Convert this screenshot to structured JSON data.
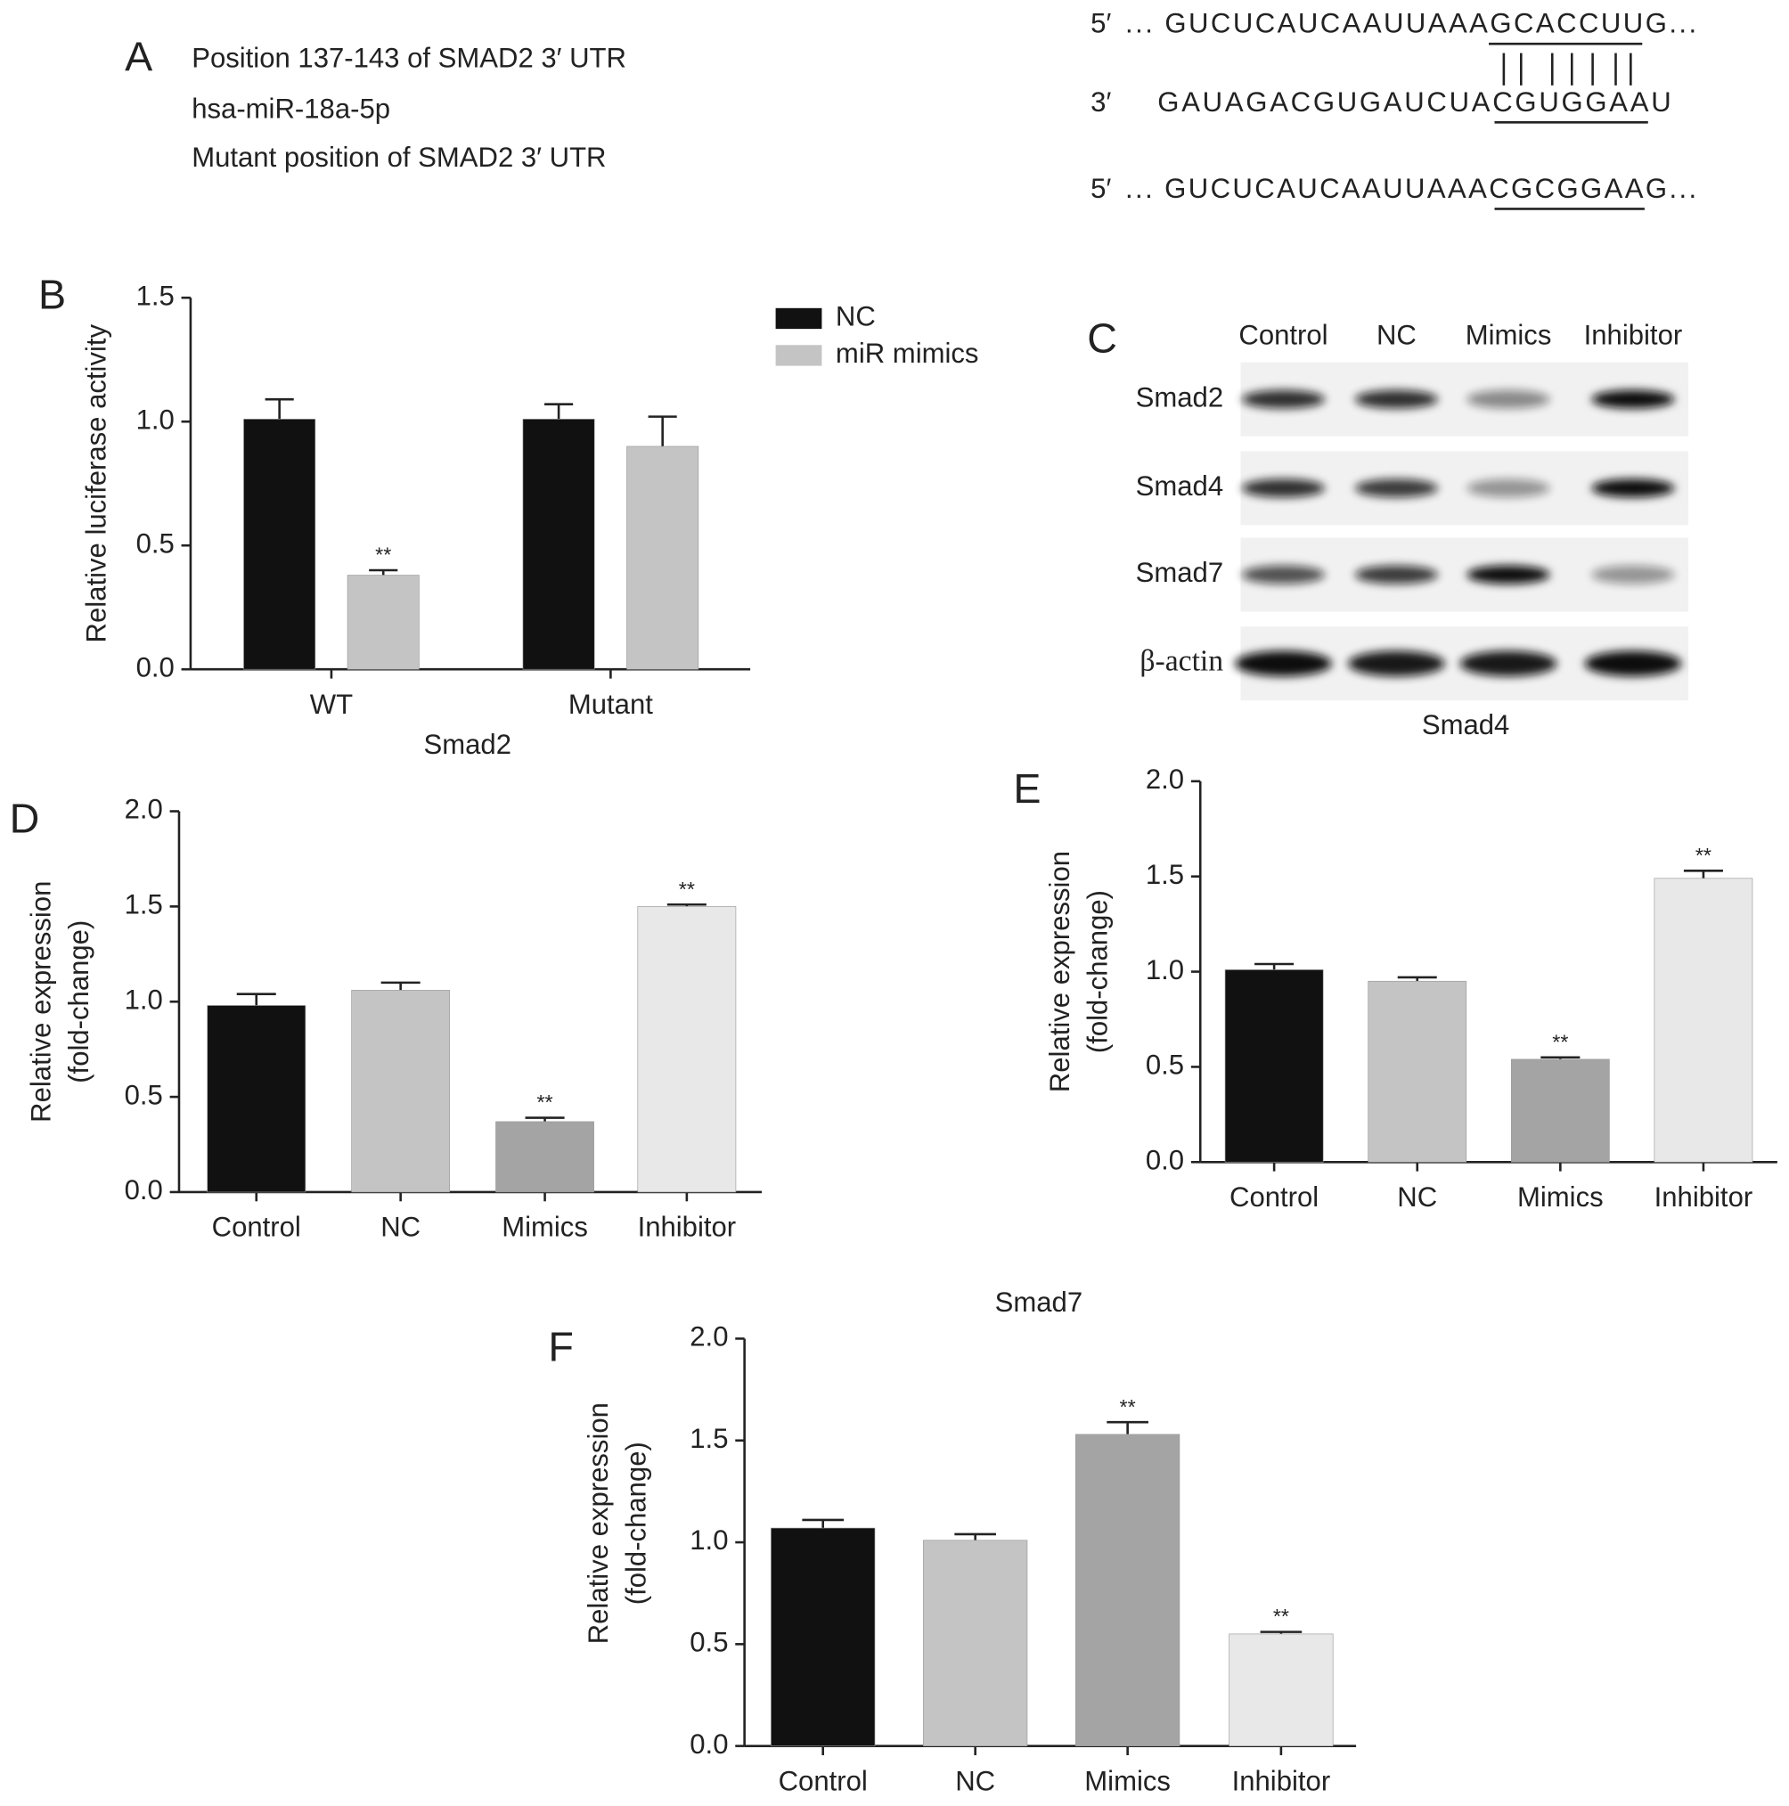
{
  "panel_a": {
    "label": "A",
    "lines": [
      "Position 137-143 of SMAD2 3′ UTR",
      "hsa-miR-18a-5p",
      "Mutant position of SMAD2 3′ UTR"
    ],
    "sequences": [
      {
        "prime": "5′",
        "text": "... GUCUCAUCAAUUAAAGCACCUUG..."
      },
      {
        "prime": "3′",
        "text": "GAUAGACGUGAUCUACGUGGAAU"
      },
      {
        "prime": "5′",
        "text": "... GUCUCAUCAAUUAAACGCGGAAG..."
      }
    ]
  },
  "panel_c": {
    "label": "C",
    "lanes": [
      "Control",
      "NC",
      "Mimics",
      "Inhibitor"
    ],
    "rows": [
      "Smad2",
      "Smad4",
      "Smad7",
      "β-actin"
    ]
  },
  "chart_data": [
    {
      "type": "bar",
      "label": "B",
      "x_label": "Smad2",
      "y_label": "Relative luciferase activity",
      "categories": [
        "WT",
        "Mutant"
      ],
      "series": [
        {
          "name": "NC",
          "color": "#111111",
          "values": [
            1.01,
            1.01
          ],
          "errors": [
            0.08,
            0.06
          ],
          "significance": [
            null,
            null
          ]
        },
        {
          "name": "miR mimics",
          "color": "#c4c4c4",
          "values": [
            0.38,
            0.9
          ],
          "errors": [
            0.02,
            0.12
          ],
          "significance": [
            "**",
            null
          ]
        }
      ],
      "ylim": [
        0,
        1.5
      ],
      "yticks": [
        {
          "value": 0,
          "label": "0.0"
        },
        0.5,
        {
          "value": 1,
          "label": "1.0"
        },
        1.5
      ]
    },
    {
      "type": "bar",
      "label": "D",
      "y_label": [
        "Relative expression",
        "(fold-change)"
      ],
      "categories": [
        "Control",
        "NC",
        "Mimics",
        "Inhibitor"
      ],
      "values": [
        0.98,
        1.06,
        0.37,
        1.5
      ],
      "errors": [
        0.06,
        0.04,
        0.02,
        0.01
      ],
      "colors": [
        "#111111",
        "#c4c4c4",
        "#a4a4a4",
        "#e8e8e8"
      ],
      "significance": [
        null,
        null,
        "**",
        "**"
      ],
      "ylim": [
        0,
        2
      ],
      "yticks": [
        {
          "value": 0,
          "label": "0.0"
        },
        0.5,
        {
          "value": 1,
          "label": "1.0"
        },
        1.5,
        {
          "value": 2,
          "label": "2.0"
        }
      ]
    },
    {
      "type": "bar",
      "label": "E",
      "title": "Smad4",
      "y_label": [
        "Relative expression",
        "(fold-change)"
      ],
      "categories": [
        "Control",
        "NC",
        "Mimics",
        "Inhibitor"
      ],
      "values": [
        1.01,
        0.95,
        0.54,
        1.49
      ],
      "errors": [
        0.03,
        0.02,
        0.01,
        0.04
      ],
      "colors": [
        "#111111",
        "#c4c4c4",
        "#a4a4a4",
        "#e8e8e8"
      ],
      "significance": [
        null,
        null,
        "**",
        "**"
      ],
      "ylim": [
        0,
        2
      ],
      "yticks": [
        {
          "value": 0,
          "label": "0.0"
        },
        0.5,
        {
          "value": 1,
          "label": "1.0"
        },
        1.5,
        {
          "value": 2,
          "label": "2.0"
        }
      ]
    },
    {
      "type": "bar",
      "label": "F",
      "title": "Smad7",
      "y_label": [
        "Relative expression",
        "(fold-change)"
      ],
      "categories": [
        "Control",
        "NC",
        "Mimics",
        "Inhibitor"
      ],
      "values": [
        1.07,
        1.01,
        1.53,
        0.55
      ],
      "errors": [
        0.04,
        0.03,
        0.06,
        0.01
      ],
      "colors": [
        "#111111",
        "#c4c4c4",
        "#a4a4a4",
        "#e8e8e8"
      ],
      "significance": [
        null,
        null,
        "**",
        "**"
      ],
      "ylim": [
        0,
        2
      ],
      "yticks": [
        {
          "value": 0,
          "label": "0.0"
        },
        0.5,
        {
          "value": 1,
          "label": "1.0"
        },
        1.5,
        {
          "value": 2,
          "label": "2.0"
        }
      ]
    }
  ]
}
